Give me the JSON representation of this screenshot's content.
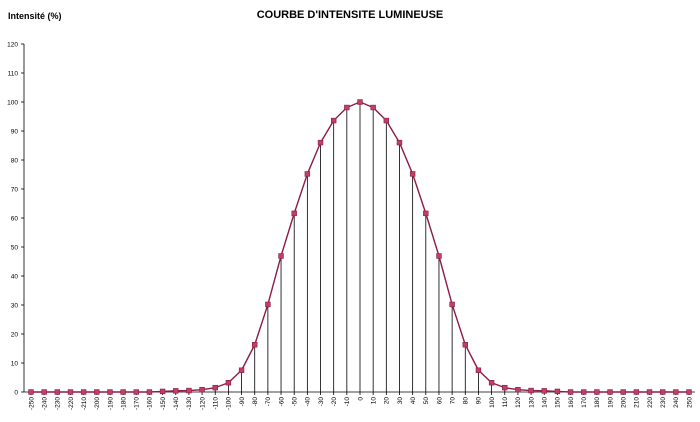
{
  "chart_data": {
    "type": "line",
    "title": "COURBE D'INTENSITE LUMINEUSE",
    "xlabel": "",
    "ylabel": "Intensité (%)",
    "ylim": [
      0,
      120
    ],
    "yticks": [
      0,
      10,
      20,
      30,
      40,
      50,
      60,
      70,
      80,
      90,
      100,
      110,
      120
    ],
    "x": [
      -250,
      -240,
      -230,
      -220,
      -210,
      -200,
      -190,
      -180,
      -170,
      -160,
      -150,
      -140,
      -130,
      -120,
      -110,
      -100,
      -90,
      -80,
      -70,
      -60,
      -50,
      -40,
      -30,
      -20,
      -10,
      0,
      10,
      20,
      30,
      40,
      50,
      60,
      70,
      80,
      90,
      100,
      110,
      120,
      130,
      140,
      150,
      160,
      170,
      180,
      190,
      200,
      210,
      220,
      230,
      240,
      250
    ],
    "series": [
      {
        "values": [
          0,
          0,
          0,
          0,
          0,
          0,
          0,
          0,
          0,
          0,
          0.2,
          0.4,
          0.5,
          0.8,
          1.5,
          3.2,
          7.5,
          16.3,
          30.2,
          46.9,
          61.6,
          75.2,
          86,
          93.6,
          98.1,
          100,
          98.1,
          93.6,
          86,
          75.2,
          61.6,
          46.9,
          30.2,
          16.3,
          7.5,
          3.2,
          1.5,
          0.8,
          0.5,
          0.4,
          0.2,
          0,
          0,
          0,
          0,
          0,
          0,
          0,
          0,
          0,
          0
        ],
        "line_color": "#8B1A4A",
        "marker_color": "#C0405F",
        "drop_lines_color": "#000000"
      }
    ],
    "grid": false,
    "legend": "none"
  }
}
